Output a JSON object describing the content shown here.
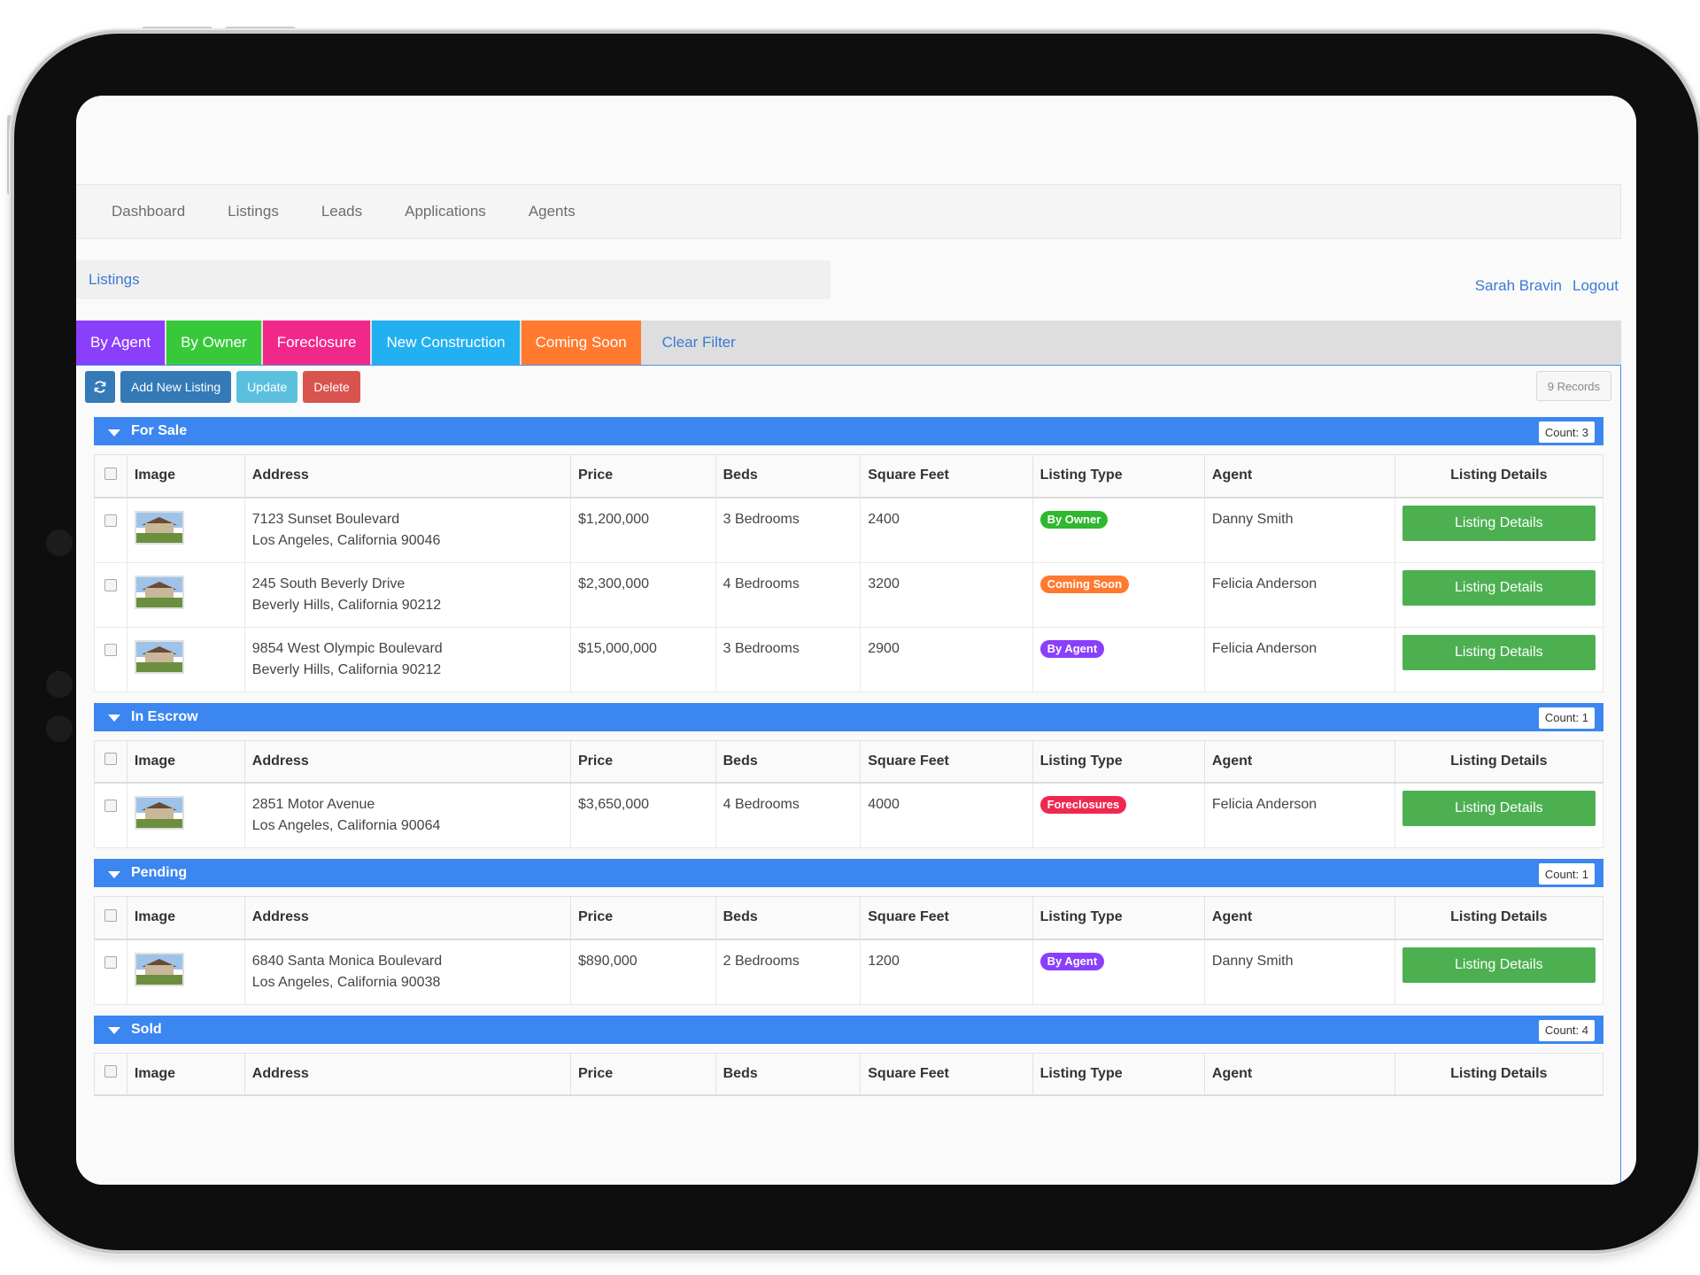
{
  "nav": {
    "items": [
      "Dashboard",
      "Listings",
      "Leads",
      "Applications",
      "Agents"
    ]
  },
  "breadcrumb": "Listings",
  "user": {
    "name": "Sarah Bravin",
    "logout": "Logout"
  },
  "filters": {
    "tabs": [
      {
        "label": "By Agent",
        "color": "#8a3ffc"
      },
      {
        "label": "By Owner",
        "color": "#38c93b"
      },
      {
        "label": "Foreclosure",
        "color": "#f0288a"
      },
      {
        "label": "New Construction",
        "color": "#22b0f0"
      },
      {
        "label": "Coming Soon",
        "color": "#ff7a2e"
      }
    ],
    "clear_label": "Clear Filter"
  },
  "toolbar": {
    "refresh_icon": "refresh-icon",
    "add_label": "Add New Listing",
    "update_label": "Update",
    "delete_label": "Delete",
    "records": "9 Records"
  },
  "columns": {
    "image": "Image",
    "address": "Address",
    "price": "Price",
    "beds": "Beds",
    "sqft": "Square Feet",
    "type": "Listing Type",
    "agent": "Agent",
    "details": "Listing Details"
  },
  "details_label": "Listing Details",
  "colors": {
    "By Owner": "#2fb82f",
    "Coming Soon": "#ff7a2e",
    "By Agent": "#8a3ffc",
    "Foreclosures": "#f0284f"
  },
  "groups": [
    {
      "title": "For Sale",
      "count": "Count: 3",
      "rows": [
        {
          "addr1": "7123 Sunset Boulevard",
          "addr2": "Los Angeles, California 90046",
          "price": "$1,200,000",
          "beds": "3 Bedrooms",
          "sqft": "2400",
          "type": "By Owner",
          "agent": "Danny Smith"
        },
        {
          "addr1": "245 South Beverly Drive",
          "addr2": "Beverly Hills, California 90212",
          "price": "$2,300,000",
          "beds": "4 Bedrooms",
          "sqft": "3200",
          "type": "Coming Soon",
          "agent": "Felicia Anderson"
        },
        {
          "addr1": "9854 West Olympic Boulevard",
          "addr2": "Beverly Hills, California 90212",
          "price": "$15,000,000",
          "beds": "3 Bedrooms",
          "sqft": "2900",
          "type": "By Agent",
          "agent": "Felicia Anderson"
        }
      ]
    },
    {
      "title": "In Escrow",
      "count": "Count: 1",
      "rows": [
        {
          "addr1": "2851 Motor Avenue",
          "addr2": "Los Angeles, California 90064",
          "price": "$3,650,000",
          "beds": "4 Bedrooms",
          "sqft": "4000",
          "type": "Foreclosures",
          "agent": "Felicia Anderson"
        }
      ]
    },
    {
      "title": "Pending",
      "count": "Count: 1",
      "rows": [
        {
          "addr1": "6840 Santa Monica Boulevard",
          "addr2": "Los Angeles, California 90038",
          "price": "$890,000",
          "beds": "2 Bedrooms",
          "sqft": "1200",
          "type": "By Agent",
          "agent": "Danny Smith"
        }
      ]
    },
    {
      "title": "Sold",
      "count": "Count: 4",
      "rows": []
    }
  ]
}
